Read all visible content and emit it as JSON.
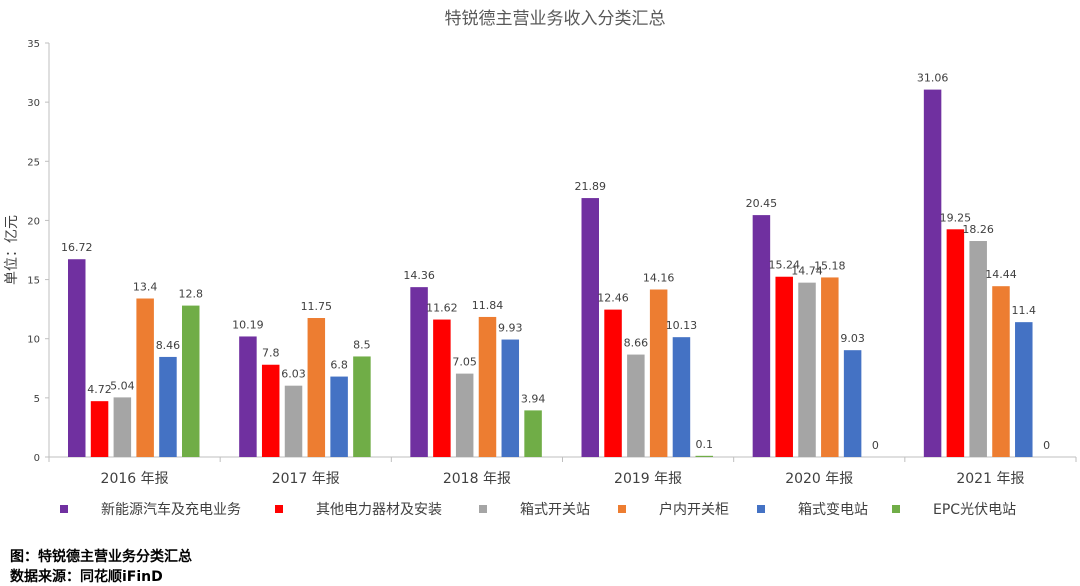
{
  "chart_data": {
    "type": "bar",
    "title": "特锐德主营业务收入分类汇总",
    "ylabel": "单位：亿元",
    "xlabel": "",
    "ylim": [
      0,
      35
    ],
    "yticks": [
      0,
      5,
      10,
      15,
      20,
      25,
      30,
      35
    ],
    "grid": false,
    "legend_position": "bottom",
    "categories": [
      "2016 年报",
      "2017 年报",
      "2018 年报",
      "2019 年报",
      "2020 年报",
      "2021 年报"
    ],
    "series": [
      {
        "name": "新能源汽车及充电业务",
        "color": "#7030a0",
        "values": [
          16.72,
          10.19,
          14.36,
          21.89,
          20.45,
          31.06
        ]
      },
      {
        "name": "其他电力器材及安装",
        "color": "#ff0000",
        "values": [
          4.72,
          7.8,
          11.62,
          12.46,
          15.24,
          19.25
        ]
      },
      {
        "name": "箱式开关站",
        "color": "#a5a5a5",
        "values": [
          5.04,
          6.03,
          7.05,
          8.66,
          14.74,
          18.26
        ]
      },
      {
        "name": "户内开关柜",
        "color": "#ed7d31",
        "values": [
          13.4,
          11.75,
          11.84,
          14.16,
          15.18,
          14.44
        ]
      },
      {
        "name": "箱式变电站",
        "color": "#4472c4",
        "values": [
          8.46,
          6.8,
          9.93,
          10.13,
          9.03,
          11.4
        ]
      },
      {
        "name": "EPC光伏电站",
        "color": "#70ad47",
        "values": [
          12.8,
          8.5,
          3.94,
          0.1,
          0,
          0
        ]
      }
    ]
  },
  "captions": {
    "figure": "图：特锐德主营业务分类汇总",
    "source": "数据来源：同花顺iFinD"
  }
}
